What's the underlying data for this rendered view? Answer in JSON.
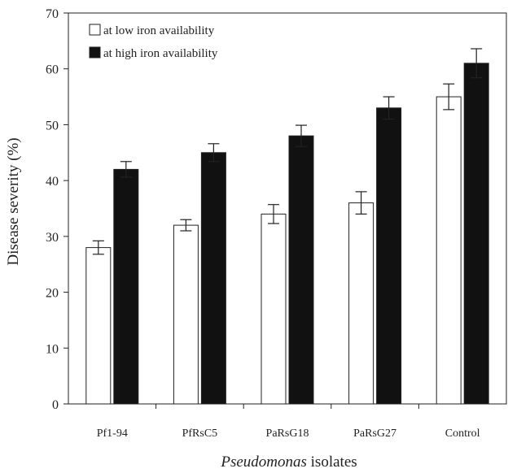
{
  "chart_data": {
    "type": "bar",
    "title": "",
    "xlabel": {
      "italic": "Pseudomonas",
      "rest": " isolates"
    },
    "ylabel": "Disease severity (%)",
    "ylim": [
      0,
      70
    ],
    "yticks": [
      0,
      10,
      20,
      30,
      40,
      50,
      60,
      70
    ],
    "grid": false,
    "legend_position": "top-left",
    "categories": [
      "Pf1-94",
      "PfRsC5",
      "PaRsG18",
      "PaRsG27",
      "Control"
    ],
    "series": [
      {
        "name": "at low iron availability",
        "color": "#ffffff",
        "values": [
          28,
          32,
          34,
          36,
          55
        ],
        "errors": [
          1.2,
          1.0,
          1.7,
          2.0,
          2.3
        ]
      },
      {
        "name": "at high iron availability",
        "color": "#111111",
        "values": [
          42,
          45,
          48,
          53,
          61
        ],
        "errors": [
          1.4,
          1.6,
          1.9,
          2.0,
          2.6
        ]
      }
    ]
  }
}
